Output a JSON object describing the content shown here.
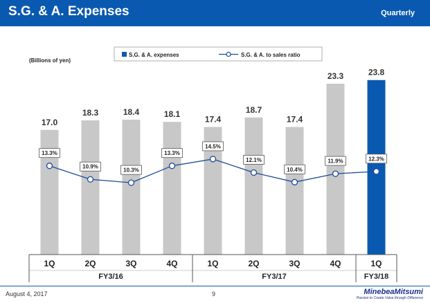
{
  "header": {
    "title": "S.G. & A. Expenses",
    "period": "Quarterly"
  },
  "colors": {
    "brand": "#0a59b0",
    "bar_gray": "#c8c8c8",
    "bar_highlight": "#0a59b0",
    "line": "#1c4a9c"
  },
  "chart_data": {
    "type": "bar+line",
    "unit_label": "(Billions of yen)",
    "legend": {
      "bar": "S.G. & A. expenses",
      "line": "S.G. & A. to sales ratio"
    },
    "categories": [
      "1Q",
      "2Q",
      "3Q",
      "4Q",
      "1Q",
      "2Q",
      "3Q",
      "4Q",
      "1Q"
    ],
    "groups": [
      {
        "label": "FY3/16",
        "count": 4
      },
      {
        "label": "FY3/17",
        "count": 4
      },
      {
        "label": "FY3/18",
        "count": 1
      }
    ],
    "series": [
      {
        "name": "S.G. & A. expenses",
        "type": "bar",
        "values": [
          17.0,
          18.3,
          18.4,
          18.1,
          17.4,
          18.7,
          17.4,
          23.3,
          23.8
        ],
        "labels": [
          "17.0",
          "18.3",
          "18.4",
          "18.1",
          "17.4",
          "18.7",
          "17.4",
          "23.3",
          "23.8"
        ],
        "highlight_index": 8
      },
      {
        "name": "S.G. & A. to sales ratio",
        "type": "line",
        "values": [
          13.3,
          10.9,
          10.3,
          13.3,
          14.5,
          12.1,
          10.4,
          11.9,
          12.3
        ],
        "labels": [
          "13.3%",
          "10.9%",
          "10.3%",
          "13.3%",
          "14.5%",
          "12.1%",
          "10.4%",
          "11.9%",
          "12.3%"
        ]
      }
    ],
    "bar_axis_range": [
      0,
      25
    ],
    "line_axis_range": [
      0,
      28
    ]
  },
  "footer": {
    "date": "August 4, 2017",
    "page": "9",
    "logo": "MinebeaMitsumi",
    "tagline": "Passion to Create Value through Difference"
  }
}
